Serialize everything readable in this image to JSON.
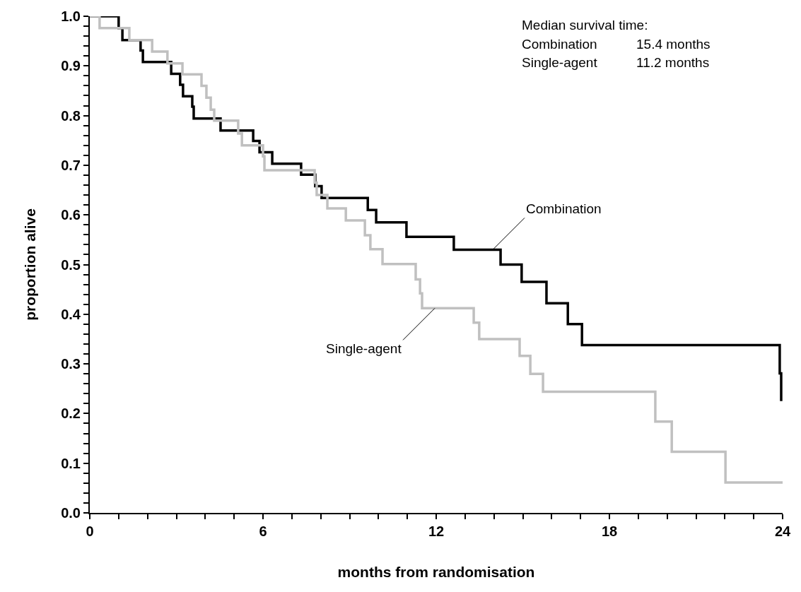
{
  "chart_data": {
    "type": "step",
    "xlabel": "months from randomisation",
    "ylabel": "proportion alive",
    "series": [
      {
        "color": "#000000",
        "x": [
          0,
          1.0,
          1.13,
          1.76,
          1.84,
          2.82,
          3.13,
          3.23,
          3.55,
          3.6,
          4.53,
          5.66,
          5.88,
          6.32,
          7.32,
          7.81,
          8.03,
          9.63,
          9.92,
          10.97,
          12.61,
          14.23,
          14.96,
          15.82,
          16.56,
          17.05,
          23.9,
          23.95
        ],
        "values": [
          1.0,
          0.976,
          0.952,
          0.931,
          0.908,
          0.884,
          0.862,
          0.839,
          0.818,
          0.794,
          0.77,
          0.749,
          0.726,
          0.703,
          0.681,
          0.658,
          0.634,
          0.61,
          0.585,
          0.556,
          0.53,
          0.5,
          0.465,
          0.422,
          0.38,
          0.338,
          0.281,
          0.225
        ]
      },
      {
        "color": "#c0c0c0",
        "x": [
          0,
          0.34,
          1.37,
          2.16,
          2.69,
          3.21,
          3.87,
          4.04,
          4.19,
          4.31,
          5.14,
          5.27,
          6.0,
          6.05,
          7.79,
          7.86,
          8.23,
          8.87,
          9.53,
          9.72,
          10.14,
          11.29,
          11.44,
          11.51,
          13.3,
          13.49,
          14.89,
          15.26,
          15.7,
          19.59,
          20.16,
          22.02,
          24.0
        ],
        "values": [
          1.0,
          0.976,
          0.952,
          0.929,
          0.905,
          0.883,
          0.86,
          0.836,
          0.812,
          0.79,
          0.764,
          0.74,
          0.718,
          0.69,
          0.665,
          0.64,
          0.613,
          0.589,
          0.559,
          0.531,
          0.501,
          0.47,
          0.442,
          0.412,
          0.383,
          0.35,
          0.316,
          0.28,
          0.244,
          0.184,
          0.123,
          0.061,
          0.061
        ]
      }
    ],
    "annotations": [
      {
        "text": "Combination",
        "x": 13.96,
        "y": 0.53
      },
      {
        "text": "Single-agent",
        "x": 11.95,
        "y": 0.412
      },
      "Median survival time:",
      "Combination",
      "15.4 months",
      "Single-agent",
      "11.2 months"
    ],
    "xlim": [
      0,
      24
    ],
    "ylim": [
      0,
      1
    ],
    "xticks": [
      0,
      {
        "value": 1,
        "label": null
      },
      {
        "value": 2,
        "label": null
      },
      {
        "value": 3,
        "label": null
      },
      {
        "value": 4,
        "label": null
      },
      {
        "value": 5,
        "label": null
      },
      6,
      {
        "value": 7,
        "label": null
      },
      {
        "value": 8,
        "label": null
      },
      {
        "value": 9,
        "label": null
      },
      {
        "value": 10,
        "label": null
      },
      {
        "value": 11,
        "label": null
      },
      12,
      {
        "value": 13,
        "label": null
      },
      {
        "value": 14,
        "label": null
      },
      {
        "value": 15,
        "label": null
      },
      {
        "value": 16,
        "label": null
      },
      {
        "value": 17,
        "label": null
      },
      18,
      {
        "value": 19,
        "label": null
      },
      {
        "value": 20,
        "label": null
      },
      {
        "value": 21,
        "label": null
      },
      {
        "value": 22,
        "label": null
      },
      {
        "value": 23,
        "label": null
      },
      24
    ],
    "yticks": [
      {
        "value": 0,
        "label": "0.0"
      },
      {
        "value": 0.02,
        "label": null
      },
      {
        "value": 0.04,
        "label": null
      },
      {
        "value": 0.06,
        "label": null
      },
      {
        "value": 0.08,
        "label": null
      },
      {
        "value": 0.1,
        "label": "0.1"
      },
      {
        "value": 0.12,
        "label": null
      },
      {
        "value": 0.14,
        "label": null
      },
      {
        "value": 0.16,
        "label": null
      },
      {
        "value": 0.18,
        "label": null
      },
      {
        "value": 0.2,
        "label": "0.2"
      },
      {
        "value": 0.22,
        "label": null
      },
      {
        "value": 0.24,
        "label": null
      },
      {
        "value": 0.26,
        "label": null
      },
      {
        "value": 0.28,
        "label": null
      },
      {
        "value": 0.3,
        "label": "0.3"
      },
      {
        "value": 0.32,
        "label": null
      },
      {
        "value": 0.34,
        "label": null
      },
      {
        "value": 0.36,
        "label": null
      },
      {
        "value": 0.38,
        "label": null
      },
      {
        "value": 0.4,
        "label": "0.4"
      },
      {
        "value": 0.42,
        "label": null
      },
      {
        "value": 0.44,
        "label": null
      },
      {
        "value": 0.46,
        "label": null
      },
      {
        "value": 0.48,
        "label": null
      },
      {
        "value": 0.5,
        "label": "0.5"
      },
      {
        "value": 0.52,
        "label": null
      },
      {
        "value": 0.54,
        "label": null
      },
      {
        "value": 0.56,
        "label": null
      },
      {
        "value": 0.58,
        "label": null
      },
      {
        "value": 0.6,
        "label": "0.6"
      },
      {
        "value": 0.62,
        "label": null
      },
      {
        "value": 0.64,
        "label": null
      },
      {
        "value": 0.66,
        "label": null
      },
      {
        "value": 0.68,
        "label": null
      },
      {
        "value": 0.7,
        "label": "0.7"
      },
      {
        "value": 0.72,
        "label": null
      },
      {
        "value": 0.74,
        "label": null
      },
      {
        "value": 0.76,
        "label": null
      },
      {
        "value": 0.78,
        "label": null
      },
      {
        "value": 0.8,
        "label": "0.8"
      },
      {
        "value": 0.82,
        "label": null
      },
      {
        "value": 0.84,
        "label": null
      },
      {
        "value": 0.86,
        "label": null
      },
      {
        "value": 0.88,
        "label": null
      },
      {
        "value": 0.9,
        "label": "0.9"
      },
      {
        "value": 0.92,
        "label": null
      },
      {
        "value": 0.94,
        "label": null
      },
      {
        "value": 0.96,
        "label": null
      },
      {
        "value": 0.98,
        "label": null
      },
      {
        "value": 1.0,
        "label": "1.0"
      }
    ]
  }
}
